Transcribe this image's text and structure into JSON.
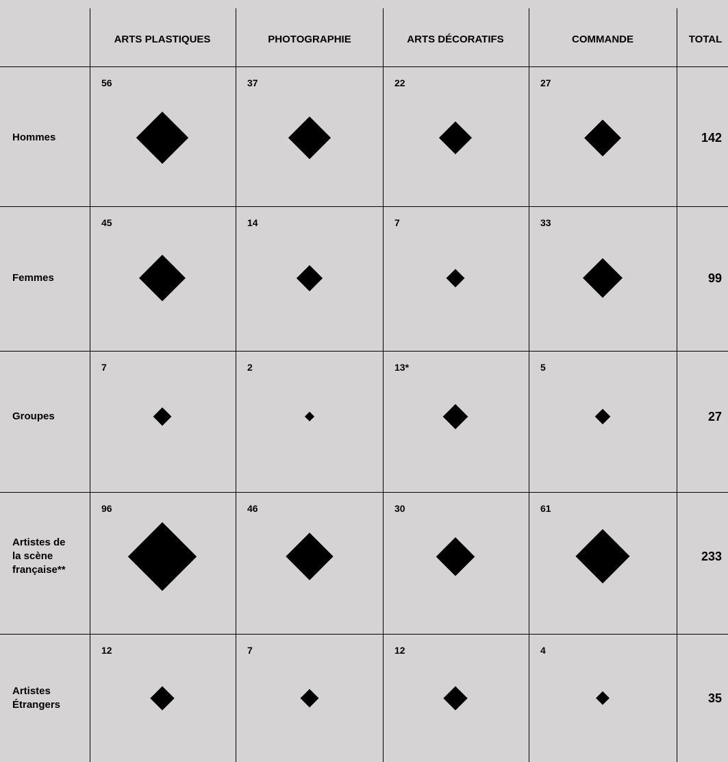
{
  "chart_data": {
    "type": "table",
    "columns": [
      "ARTS PLASTIQUES",
      "PHOTOGRAPHIE",
      "ARTS DÉCORATIFS",
      "COMMANDE",
      "TOTAL"
    ],
    "rows": [
      {
        "label": "Hommes",
        "values": [
          "56",
          "37",
          "22",
          "27"
        ],
        "numeric": [
          56,
          37,
          22,
          27
        ],
        "total": "142"
      },
      {
        "label": "Femmes",
        "values": [
          "45",
          "14",
          "7",
          "33"
        ],
        "numeric": [
          45,
          14,
          7,
          33
        ],
        "total": "99"
      },
      {
        "label": "Groupes",
        "values": [
          "7",
          "2",
          "13*",
          "5"
        ],
        "numeric": [
          7,
          2,
          13,
          5
        ],
        "total": "27"
      },
      {
        "label": "Artistes de\nla scène\nfrançaise**",
        "values": [
          "96",
          "46",
          "30",
          "61"
        ],
        "numeric": [
          96,
          46,
          30,
          61
        ],
        "total": "233"
      },
      {
        "label": "Artistes\nÉtrangers",
        "values": [
          "12",
          "7",
          "12",
          "4"
        ],
        "numeric": [
          12,
          7,
          12,
          4
        ],
        "total": "35"
      }
    ],
    "marker": "diamond (area proportional to value)",
    "grid": true
  },
  "colors": {
    "background": "#d6d3d4",
    "ink": "#000000"
  }
}
